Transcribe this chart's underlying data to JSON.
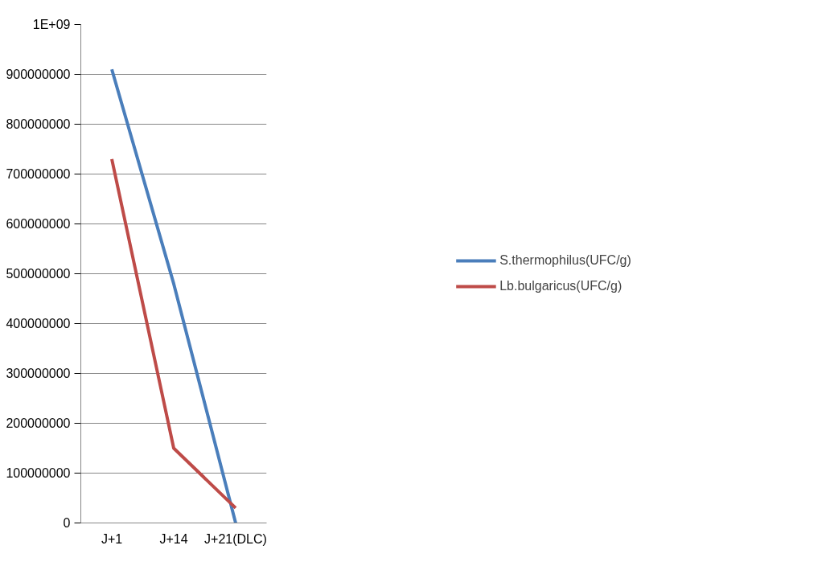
{
  "chart_data": {
    "type": "line",
    "categories": [
      "J+1",
      "J+14",
      "J+21(DLC)"
    ],
    "series": [
      {
        "name": "S.thermophilus(UFC/g)",
        "color": "#4a7ebb",
        "values": [
          910000000,
          480000000,
          0
        ]
      },
      {
        "name": "Lb.bulgaricus(UFC/g)",
        "color": "#be4b48",
        "values": [
          730000000,
          150000000,
          30000000
        ]
      }
    ],
    "ylim": [
      0,
      1000000000
    ],
    "yticks": [
      0,
      100000000,
      200000000,
      300000000,
      400000000,
      500000000,
      600000000,
      700000000,
      800000000,
      900000000,
      {
        "value": 1000000000,
        "label": "1E+09"
      }
    ],
    "grid": "y",
    "legend": "right"
  }
}
